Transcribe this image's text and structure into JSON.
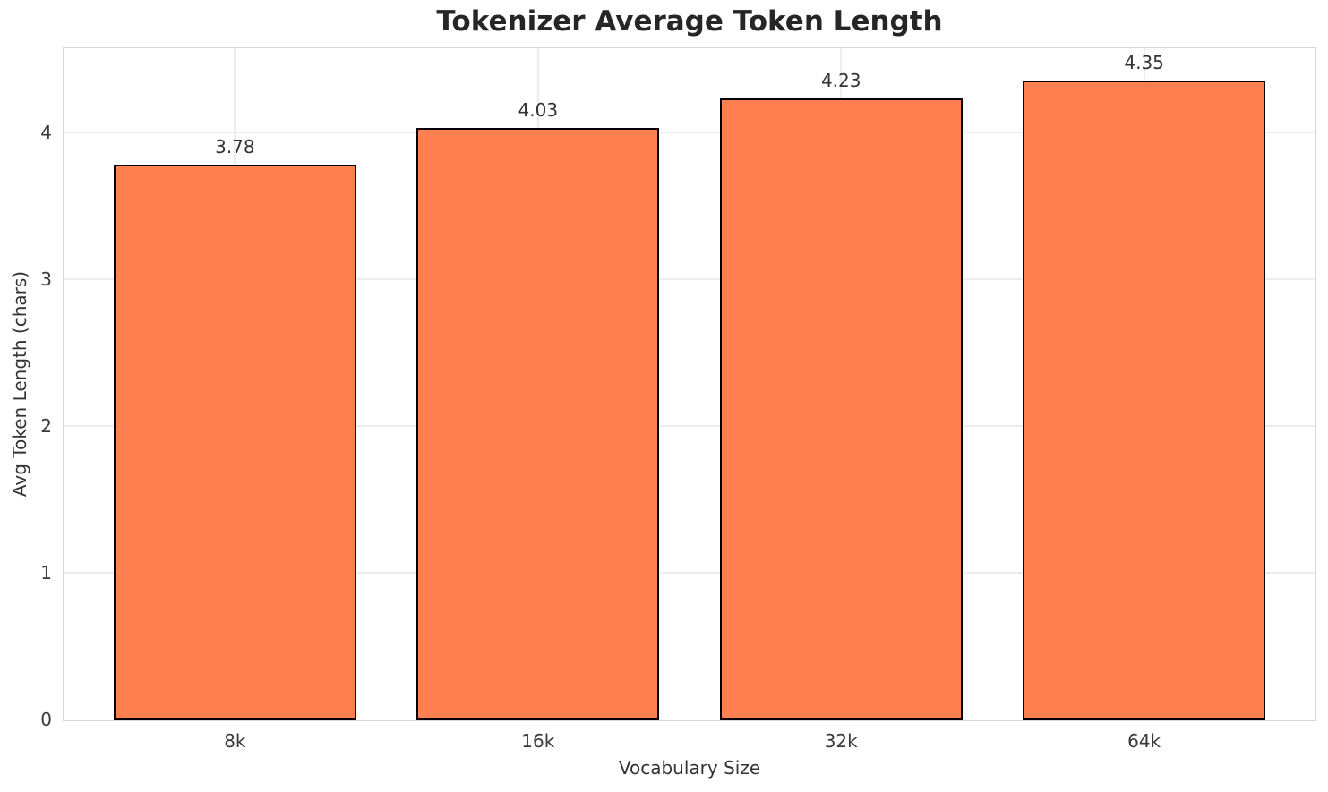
{
  "chart_data": {
    "type": "bar",
    "title": "Tokenizer Average Token Length",
    "xlabel": "Vocabulary Size",
    "ylabel": "Avg Token Length (chars)",
    "categories": [
      "8k",
      "16k",
      "32k",
      "64k"
    ],
    "values": [
      3.78,
      4.03,
      4.23,
      4.35
    ],
    "value_labels": [
      "3.78",
      "4.03",
      "4.23",
      "4.35"
    ],
    "ylim": [
      0,
      4.57
    ],
    "yticks": [
      0,
      1,
      2,
      3,
      4
    ],
    "grid": "on",
    "legend": "none",
    "bar_color": "#FF7F50",
    "bar_edge_color": "#000000",
    "bar_width_fraction": 0.8,
    "category_edge_padding": 0.5625
  }
}
